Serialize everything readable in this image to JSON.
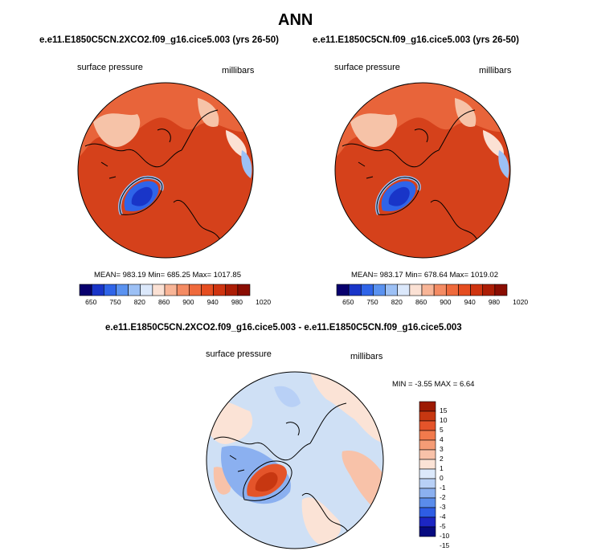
{
  "figure_title": "ANN",
  "panels": [
    {
      "case": "e.e11.E1850C5CN.2XCO2.f09_g16.cice5.003 (yrs 26-50)",
      "variable": "surface pressure",
      "units": "millibars",
      "stats_text": "MEAN= 983.19  Min= 685.25  Max= 1017.85",
      "stats": {
        "mean": 983.19,
        "min": 685.25,
        "max": 1017.85
      }
    },
    {
      "case": "e.e11.E1850C5CN.f09_g16.cice5.003 (yrs 26-50)",
      "variable": "surface pressure",
      "units": "millibars",
      "stats_text": "MEAN= 983.17  Min= 678.64  Max= 1019.02",
      "stats": {
        "mean": 983.17,
        "min": 678.64,
        "max": 1019.02
      }
    }
  ],
  "diff_panel": {
    "title": "e.e11.E1850C5CN.2XCO2.f09_g16.cice5.003 - e.e11.E1850C5CN.f09_g16.cice5.003",
    "variable": "surface pressure",
    "units": "millibars",
    "stats_text": "MIN =  -3.55 MAX =   6.64",
    "stats": {
      "min": -3.55,
      "max": 6.64
    }
  },
  "abs_colorbar": {
    "colors": [
      "#08006e",
      "#1935c8",
      "#2f64e8",
      "#5a92f0",
      "#9cc0f5",
      "#dbe8fb",
      "#fbe1d4",
      "#f8b597",
      "#f48b63",
      "#ef6a3c",
      "#e54d20",
      "#cf3410",
      "#ac1d05",
      "#8a0d02"
    ],
    "tick_labels": [
      "650",
      "750",
      "820",
      "860",
      "900",
      "940",
      "980",
      "1020"
    ]
  },
  "diff_colorbar": {
    "colors": [
      "#060a80",
      "#1c26c3",
      "#2e5de4",
      "#5a8ceb",
      "#8bb0f0",
      "#b8d0f6",
      "#dce9fb",
      "#fbe3d6",
      "#f8c2a9",
      "#f59c76",
      "#f17a4c",
      "#e4542a",
      "#c73711",
      "#9d1a03"
    ],
    "tick_labels": [
      "15",
      "10",
      "5",
      "4",
      "3",
      "2",
      "1",
      "0",
      "-1",
      "-2",
      "-3",
      "-4",
      "-5",
      "-10",
      "-15"
    ]
  },
  "colors": {
    "land_outline": "#000000",
    "dominant_red": "#d5411b",
    "dominant_light_blue": "#cfe0f5"
  }
}
